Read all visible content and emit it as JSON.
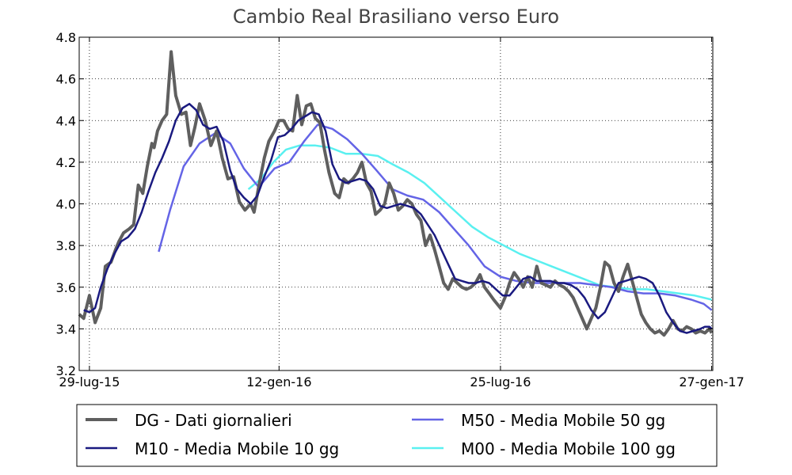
{
  "chart_data": {
    "type": "line",
    "title": "Cambio Real  Brasiliano verso Euro",
    "xlabel": "",
    "ylabel": "",
    "x_range": [
      "2015-07-20",
      "2017-01-28"
    ],
    "ylim": [
      3.2,
      4.8
    ],
    "yticks": [
      3.2,
      3.4,
      3.6,
      3.8,
      4.0,
      4.2,
      4.4,
      4.6,
      4.8
    ],
    "xticks": [
      {
        "date": "2015-07-29",
        "label": "29-lug-15"
      },
      {
        "date": "2016-01-12",
        "label": "12-gen-16"
      },
      {
        "date": "2016-07-25",
        "label": "25-lug-16"
      },
      {
        "date": "2017-01-27",
        "label": "27-gen-17"
      }
    ],
    "grid": true,
    "legend_placement": "below",
    "series": [
      {
        "name": "DG - Dati giornalieri",
        "color": "#5f5f5f",
        "x": [
          "2015-07-20",
          "2015-07-24",
          "2015-07-29",
          "2015-08-03",
          "2015-08-08",
          "2015-08-12",
          "2015-08-17",
          "2015-08-21",
          "2015-08-24",
          "2015-08-28",
          "2015-09-02",
          "2015-09-06",
          "2015-09-10",
          "2015-09-14",
          "2015-09-18",
          "2015-09-22",
          "2015-09-24",
          "2015-09-27",
          "2015-10-01",
          "2015-10-05",
          "2015-10-09",
          "2015-10-13",
          "2015-10-18",
          "2015-10-22",
          "2015-10-26",
          "2015-10-30",
          "2015-11-03",
          "2015-11-08",
          "2015-11-13",
          "2015-11-18",
          "2015-11-23",
          "2015-11-28",
          "2015-12-03",
          "2015-12-08",
          "2015-12-13",
          "2015-12-18",
          "2015-12-21",
          "2015-12-26",
          "2015-12-30",
          "2016-01-03",
          "2016-01-08",
          "2016-01-12",
          "2016-01-16",
          "2016-01-20",
          "2016-01-24",
          "2016-01-28",
          "2016-02-01",
          "2016-02-05",
          "2016-02-09",
          "2016-02-13",
          "2016-02-17",
          "2016-02-21",
          "2016-02-25",
          "2016-03-01",
          "2016-03-05",
          "2016-03-09",
          "2016-03-13",
          "2016-03-17",
          "2016-03-21",
          "2016-03-25",
          "2016-03-29",
          "2016-04-02",
          "2016-04-06",
          "2016-04-10",
          "2016-04-14",
          "2016-04-18",
          "2016-04-22",
          "2016-04-26",
          "2016-04-30",
          "2016-05-04",
          "2016-05-08",
          "2016-05-12",
          "2016-05-16",
          "2016-05-20",
          "2016-05-24",
          "2016-05-28",
          "2016-06-01",
          "2016-06-05",
          "2016-06-09",
          "2016-06-13",
          "2016-06-17",
          "2016-06-21",
          "2016-06-25",
          "2016-06-29",
          "2016-07-03",
          "2016-07-07",
          "2016-07-11",
          "2016-07-15",
          "2016-07-19",
          "2016-07-25",
          "2016-07-29",
          "2016-08-02",
          "2016-08-06",
          "2016-08-10",
          "2016-08-14",
          "2016-08-18",
          "2016-08-22",
          "2016-08-26",
          "2016-08-30",
          "2016-09-03",
          "2016-09-07",
          "2016-09-11",
          "2016-09-15",
          "2016-09-19",
          "2016-09-23",
          "2016-09-27",
          "2016-10-01",
          "2016-10-05",
          "2016-10-09",
          "2016-10-13",
          "2016-10-17",
          "2016-10-21",
          "2016-10-25",
          "2016-10-29",
          "2016-11-02",
          "2016-11-06",
          "2016-11-10",
          "2016-11-14",
          "2016-11-18",
          "2016-11-22",
          "2016-11-26",
          "2016-11-30",
          "2016-12-04",
          "2016-12-08",
          "2016-12-12",
          "2016-12-16",
          "2016-12-20",
          "2016-12-24",
          "2016-12-28",
          "2017-01-01",
          "2017-01-05",
          "2017-01-09",
          "2017-01-13",
          "2017-01-17",
          "2017-01-21",
          "2017-01-25",
          "2017-01-27"
        ],
        "y": [
          3.47,
          3.45,
          3.56,
          3.43,
          3.5,
          3.7,
          3.72,
          3.78,
          3.82,
          3.86,
          3.88,
          3.9,
          4.09,
          4.05,
          4.18,
          4.29,
          4.27,
          4.35,
          4.4,
          4.43,
          4.73,
          4.52,
          4.43,
          4.44,
          4.28,
          4.37,
          4.48,
          4.4,
          4.28,
          4.35,
          4.22,
          4.12,
          4.13,
          4.01,
          3.97,
          4.0,
          3.96,
          4.11,
          4.22,
          4.3,
          4.35,
          4.4,
          4.4,
          4.36,
          4.35,
          4.52,
          4.38,
          4.47,
          4.48,
          4.41,
          4.39,
          4.26,
          4.15,
          4.05,
          4.03,
          4.12,
          4.1,
          4.12,
          4.15,
          4.2,
          4.1,
          4.06,
          3.95,
          3.97,
          4.0,
          4.1,
          4.05,
          3.97,
          3.99,
          4.02,
          4.0,
          3.95,
          3.92,
          3.8,
          3.85,
          3.78,
          3.7,
          3.62,
          3.59,
          3.64,
          3.62,
          3.6,
          3.59,
          3.6,
          3.62,
          3.66,
          3.6,
          3.57,
          3.54,
          3.5,
          3.55,
          3.62,
          3.67,
          3.64,
          3.6,
          3.65,
          3.6,
          3.7,
          3.62,
          3.61,
          3.6,
          3.63,
          3.61,
          3.6,
          3.58,
          3.55,
          3.5,
          3.45,
          3.4,
          3.45,
          3.5,
          3.6,
          3.72,
          3.7,
          3.62,
          3.58,
          3.65,
          3.71,
          3.63,
          3.55,
          3.47,
          3.43,
          3.4,
          3.38,
          3.39,
          3.37,
          3.4,
          3.44,
          3.4,
          3.39,
          3.41,
          3.4,
          3.38,
          3.39,
          3.38,
          3.4,
          3.38
        ]
      },
      {
        "name": "M10 - Media Mobile 10 gg",
        "color": "#1a1a80",
        "x": [
          "2015-07-24",
          "2015-07-29",
          "2015-08-03",
          "2015-08-08",
          "2015-08-14",
          "2015-08-20",
          "2015-08-26",
          "2015-09-01",
          "2015-09-07",
          "2015-09-13",
          "2015-09-19",
          "2015-09-25",
          "2015-10-01",
          "2015-10-07",
          "2015-10-13",
          "2015-10-19",
          "2015-10-25",
          "2015-10-31",
          "2015-11-06",
          "2015-11-12",
          "2015-11-18",
          "2015-11-24",
          "2015-11-30",
          "2015-12-06",
          "2015-12-12",
          "2015-12-18",
          "2015-12-24",
          "2015-12-30",
          "2016-01-05",
          "2016-01-11",
          "2016-01-17",
          "2016-01-23",
          "2016-01-29",
          "2016-02-04",
          "2016-02-10",
          "2016-02-16",
          "2016-02-22",
          "2016-02-28",
          "2016-03-05",
          "2016-03-11",
          "2016-03-17",
          "2016-03-23",
          "2016-03-29",
          "2016-04-04",
          "2016-04-10",
          "2016-04-16",
          "2016-04-22",
          "2016-04-28",
          "2016-05-04",
          "2016-05-10",
          "2016-05-16",
          "2016-05-22",
          "2016-05-28",
          "2016-06-03",
          "2016-06-09",
          "2016-06-15",
          "2016-06-21",
          "2016-06-27",
          "2016-07-03",
          "2016-07-09",
          "2016-07-15",
          "2016-07-21",
          "2016-07-27",
          "2016-08-02",
          "2016-08-08",
          "2016-08-14",
          "2016-08-20",
          "2016-08-26",
          "2016-09-01",
          "2016-09-07",
          "2016-09-13",
          "2016-09-19",
          "2016-09-25",
          "2016-10-01",
          "2016-10-07",
          "2016-10-13",
          "2016-10-19",
          "2016-10-25",
          "2016-10-31",
          "2016-11-06",
          "2016-11-12",
          "2016-11-18",
          "2016-11-24",
          "2016-11-30",
          "2016-12-06",
          "2016-12-12",
          "2016-12-18",
          "2016-12-24",
          "2016-12-30",
          "2017-01-05",
          "2017-01-11",
          "2017-01-17",
          "2017-01-21",
          "2017-01-25",
          "2017-01-27"
        ],
        "y": [
          3.49,
          3.48,
          3.5,
          3.6,
          3.69,
          3.76,
          3.82,
          3.84,
          3.88,
          3.96,
          4.06,
          4.15,
          4.22,
          4.3,
          4.4,
          4.46,
          4.48,
          4.45,
          4.38,
          4.36,
          4.37,
          4.3,
          4.16,
          4.07,
          4.03,
          4.0,
          4.04,
          4.13,
          4.21,
          4.32,
          4.33,
          4.36,
          4.4,
          4.42,
          4.44,
          4.43,
          4.35,
          4.19,
          4.12,
          4.1,
          4.11,
          4.12,
          4.11,
          4.07,
          3.99,
          3.98,
          3.99,
          4.0,
          3.99,
          3.98,
          3.95,
          3.9,
          3.85,
          3.78,
          3.71,
          3.64,
          3.63,
          3.62,
          3.62,
          3.63,
          3.62,
          3.59,
          3.56,
          3.56,
          3.6,
          3.64,
          3.65,
          3.63,
          3.63,
          3.63,
          3.62,
          3.62,
          3.61,
          3.59,
          3.55,
          3.49,
          3.45,
          3.48,
          3.55,
          3.62,
          3.63,
          3.64,
          3.65,
          3.64,
          3.62,
          3.56,
          3.48,
          3.43,
          3.39,
          3.38,
          3.39,
          3.4,
          3.41,
          3.41,
          3.4
        ]
      },
      {
        "name": "M50 - Media Mobile 50 gg",
        "color": "#6464e6",
        "x": [
          "2015-09-28",
          "2015-10-08",
          "2015-10-20",
          "2015-11-03",
          "2015-11-17",
          "2015-11-30",
          "2015-12-12",
          "2015-12-25",
          "2016-01-08",
          "2016-01-21",
          "2016-02-03",
          "2016-02-15",
          "2016-02-28",
          "2016-03-12",
          "2016-03-25",
          "2016-04-07",
          "2016-04-21",
          "2016-05-04",
          "2016-05-18",
          "2016-06-01",
          "2016-06-14",
          "2016-06-27",
          "2016-07-11",
          "2016-07-25",
          "2016-08-08",
          "2016-08-22",
          "2016-09-05",
          "2016-09-19",
          "2016-10-03",
          "2016-10-17",
          "2016-10-31",
          "2016-11-14",
          "2016-11-28",
          "2016-12-12",
          "2016-12-26",
          "2017-01-09",
          "2017-01-20",
          "2017-01-27"
        ],
        "y": [
          3.77,
          3.97,
          4.18,
          4.29,
          4.34,
          4.29,
          4.17,
          4.08,
          4.17,
          4.2,
          4.3,
          4.38,
          4.36,
          4.31,
          4.24,
          4.16,
          4.07,
          4.04,
          4.02,
          3.96,
          3.88,
          3.8,
          3.7,
          3.65,
          3.63,
          3.62,
          3.62,
          3.62,
          3.62,
          3.61,
          3.6,
          3.58,
          3.57,
          3.57,
          3.56,
          3.54,
          3.52,
          3.49
        ]
      },
      {
        "name": "M00 - Media Mobile 100 gg",
        "color": "#5af0f0",
        "x": [
          "2015-12-16",
          "2015-12-27",
          "2016-01-07",
          "2016-01-18",
          "2016-01-30",
          "2016-02-13",
          "2016-02-26",
          "2016-03-11",
          "2016-03-25",
          "2016-04-08",
          "2016-04-21",
          "2016-05-05",
          "2016-05-19",
          "2016-06-02",
          "2016-06-16",
          "2016-06-30",
          "2016-07-14",
          "2016-07-28",
          "2016-08-11",
          "2016-08-25",
          "2016-09-08",
          "2016-09-22",
          "2016-10-06",
          "2016-10-20",
          "2016-11-03",
          "2016-11-17",
          "2016-12-01",
          "2016-12-15",
          "2016-12-29",
          "2017-01-12",
          "2017-01-27"
        ],
        "y": [
          4.07,
          4.12,
          4.2,
          4.26,
          4.28,
          4.28,
          4.27,
          4.24,
          4.24,
          4.23,
          4.19,
          4.15,
          4.1,
          4.03,
          3.96,
          3.89,
          3.84,
          3.8,
          3.76,
          3.73,
          3.7,
          3.67,
          3.64,
          3.61,
          3.6,
          3.59,
          3.59,
          3.58,
          3.57,
          3.56,
          3.54
        ]
      }
    ]
  }
}
